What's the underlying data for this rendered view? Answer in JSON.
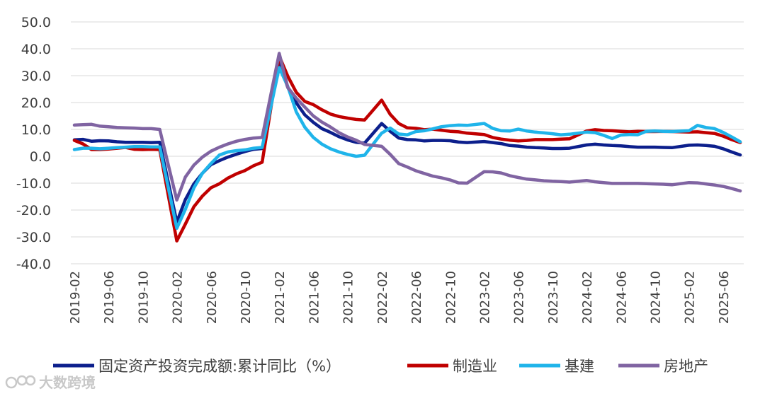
{
  "chart_data": {
    "type": "line",
    "title": "",
    "xlabel": "",
    "ylabel": "",
    "ylim": [
      -40,
      50
    ],
    "yticks": [
      50,
      40,
      30,
      20,
      10,
      0,
      -10,
      -20,
      -30,
      -40
    ],
    "ytick_labels": [
      "50.0",
      "40.0",
      "30.0",
      "20.0",
      "10.0",
      "0.0",
      "-10.0",
      "-20.0",
      "-30.0",
      "-40.0"
    ],
    "grid": true,
    "legend_position": "bottom",
    "xtick_labels": [
      "2019-02",
      "2019-06",
      "2019-10",
      "2020-02",
      "2020-06",
      "2020-10",
      "2021-02",
      "2021-06",
      "2021-10",
      "2022-02",
      "2022-06",
      "2022-10",
      "2023-02",
      "2023-06",
      "2023-10",
      "2024-02",
      "2024-06",
      "2024-10",
      "2025-02",
      "2025-06"
    ],
    "series": [
      {
        "name": "固定资产投资完成额:累计同比（%）",
        "color": "#0c1f8c",
        "values": [
          [
            0,
            6.1
          ],
          [
            1,
            6.3
          ],
          [
            2,
            5.6
          ],
          [
            3,
            5.8
          ],
          [
            4,
            5.7
          ],
          [
            5,
            5.4
          ],
          [
            6,
            5.2
          ],
          [
            7,
            5.2
          ],
          [
            8,
            5.2
          ],
          [
            9,
            5.1
          ],
          [
            10,
            5.2
          ],
          [
            12,
            -24.5
          ],
          [
            13,
            -16.1
          ],
          [
            14,
            -10.3
          ],
          [
            15,
            -6.3
          ],
          [
            16,
            -3.1
          ],
          [
            17,
            -1.6
          ],
          [
            18,
            -0.3
          ],
          [
            19,
            0.8
          ],
          [
            20,
            1.8
          ],
          [
            21,
            2.6
          ],
          [
            22,
            2.9
          ],
          [
            24,
            35.0
          ],
          [
            25,
            25.6
          ],
          [
            26,
            19.9
          ],
          [
            27,
            15.4
          ],
          [
            28,
            12.6
          ],
          [
            29,
            10.3
          ],
          [
            30,
            8.9
          ],
          [
            31,
            7.3
          ],
          [
            32,
            6.1
          ],
          [
            33,
            5.2
          ],
          [
            34,
            4.9
          ],
          [
            36,
            12.2
          ],
          [
            37,
            9.3
          ],
          [
            38,
            6.8
          ],
          [
            39,
            6.2
          ],
          [
            40,
            6.1
          ],
          [
            41,
            5.7
          ],
          [
            42,
            5.9
          ],
          [
            43,
            5.9
          ],
          [
            44,
            5.8
          ],
          [
            45,
            5.3
          ],
          [
            46,
            5.1
          ],
          [
            48,
            5.5
          ],
          [
            49,
            5.1
          ],
          [
            50,
            4.7
          ],
          [
            51,
            4.0
          ],
          [
            52,
            3.8
          ],
          [
            53,
            3.4
          ],
          [
            54,
            3.2
          ],
          [
            55,
            3.1
          ],
          [
            56,
            2.9
          ],
          [
            57,
            2.9
          ],
          [
            58,
            3.0
          ],
          [
            60,
            4.2
          ],
          [
            61,
            4.5
          ],
          [
            62,
            4.2
          ],
          [
            63,
            4.0
          ],
          [
            64,
            3.9
          ],
          [
            65,
            3.6
          ],
          [
            66,
            3.4
          ],
          [
            67,
            3.4
          ],
          [
            68,
            3.4
          ],
          [
            69,
            3.3
          ],
          [
            70,
            3.2
          ],
          [
            72,
            4.1
          ],
          [
            73,
            4.2
          ],
          [
            74,
            4.0
          ],
          [
            75,
            3.7
          ],
          [
            76,
            2.8
          ],
          [
            77,
            1.6
          ],
          [
            78,
            0.5
          ]
        ]
      },
      {
        "name": "制造业",
        "color": "#c00000",
        "values": [
          [
            0,
            5.9
          ],
          [
            1,
            4.6
          ],
          [
            2,
            2.5
          ],
          [
            3,
            2.5
          ],
          [
            4,
            2.7
          ],
          [
            5,
            3.0
          ],
          [
            6,
            3.3
          ],
          [
            7,
            2.6
          ],
          [
            8,
            2.5
          ],
          [
            9,
            2.6
          ],
          [
            10,
            2.5
          ],
          [
            12,
            -31.5
          ],
          [
            13,
            -25.2
          ],
          [
            14,
            -18.8
          ],
          [
            15,
            -14.8
          ],
          [
            16,
            -11.7
          ],
          [
            17,
            -10.2
          ],
          [
            18,
            -8.1
          ],
          [
            19,
            -6.5
          ],
          [
            20,
            -5.3
          ],
          [
            21,
            -3.5
          ],
          [
            22,
            -2.2
          ],
          [
            24,
            37.3
          ],
          [
            25,
            29.8
          ],
          [
            26,
            23.8
          ],
          [
            27,
            20.4
          ],
          [
            28,
            19.2
          ],
          [
            29,
            17.3
          ],
          [
            30,
            15.7
          ],
          [
            31,
            14.8
          ],
          [
            32,
            14.2
          ],
          [
            33,
            13.7
          ],
          [
            34,
            13.5
          ],
          [
            36,
            20.9
          ],
          [
            37,
            15.6
          ],
          [
            38,
            12.2
          ],
          [
            39,
            10.6
          ],
          [
            40,
            10.4
          ],
          [
            41,
            9.9
          ],
          [
            42,
            10.1
          ],
          [
            43,
            9.7
          ],
          [
            44,
            9.3
          ],
          [
            45,
            9.1
          ],
          [
            46,
            8.6
          ],
          [
            48,
            8.1
          ],
          [
            49,
            7.0
          ],
          [
            50,
            6.4
          ],
          [
            51,
            6.0
          ],
          [
            52,
            5.7
          ],
          [
            53,
            5.9
          ],
          [
            54,
            6.2
          ],
          [
            55,
            6.2
          ],
          [
            56,
            6.2
          ],
          [
            57,
            6.4
          ],
          [
            58,
            6.5
          ],
          [
            60,
            9.4
          ],
          [
            61,
            9.9
          ],
          [
            62,
            9.6
          ],
          [
            63,
            9.5
          ],
          [
            64,
            9.3
          ],
          [
            65,
            9.1
          ],
          [
            66,
            9.3
          ],
          [
            67,
            9.2
          ],
          [
            68,
            9.2
          ],
          [
            69,
            9.3
          ],
          [
            70,
            9.2
          ],
          [
            72,
            9.0
          ],
          [
            73,
            9.1
          ],
          [
            74,
            8.8
          ],
          [
            75,
            8.5
          ],
          [
            76,
            7.5
          ],
          [
            77,
            6.2
          ],
          [
            78,
            5.1
          ]
        ]
      },
      {
        "name": "基建",
        "color": "#1fb4ea",
        "values": [
          [
            0,
            2.5
          ],
          [
            1,
            3.0
          ],
          [
            2,
            3.0
          ],
          [
            3,
            2.8
          ],
          [
            4,
            3.0
          ],
          [
            5,
            3.2
          ],
          [
            6,
            3.4
          ],
          [
            7,
            3.6
          ],
          [
            8,
            3.6
          ],
          [
            9,
            3.5
          ],
          [
            10,
            3.5
          ],
          [
            12,
            -26.8
          ],
          [
            13,
            -19.7
          ],
          [
            14,
            -11.8
          ],
          [
            15,
            -6.3
          ],
          [
            16,
            -2.7
          ],
          [
            17,
            0.5
          ],
          [
            18,
            1.6
          ],
          [
            19,
            2.1
          ],
          [
            20,
            2.4
          ],
          [
            21,
            3.0
          ],
          [
            22,
            3.3
          ],
          [
            24,
            33.0
          ],
          [
            25,
            26.0
          ],
          [
            26,
            16.5
          ],
          [
            27,
            10.8
          ],
          [
            28,
            7.0
          ],
          [
            29,
            4.5
          ],
          [
            30,
            2.8
          ],
          [
            31,
            1.6
          ],
          [
            32,
            0.7
          ],
          [
            33,
            0.0
          ],
          [
            34,
            0.4
          ],
          [
            36,
            8.6
          ],
          [
            37,
            10.5
          ],
          [
            38,
            8.3
          ],
          [
            39,
            8.0
          ],
          [
            40,
            9.2
          ],
          [
            41,
            9.5
          ],
          [
            42,
            10.2
          ],
          [
            43,
            11.0
          ],
          [
            44,
            11.4
          ],
          [
            45,
            11.6
          ],
          [
            46,
            11.5
          ],
          [
            48,
            12.2
          ],
          [
            49,
            10.4
          ],
          [
            50,
            9.5
          ],
          [
            51,
            9.4
          ],
          [
            52,
            10.1
          ],
          [
            53,
            9.4
          ],
          [
            54,
            9.0
          ],
          [
            55,
            8.7
          ],
          [
            56,
            8.4
          ],
          [
            57,
            8.0
          ],
          [
            58,
            8.2
          ],
          [
            60,
            9.0
          ],
          [
            61,
            8.8
          ],
          [
            62,
            7.8
          ],
          [
            63,
            6.6
          ],
          [
            64,
            7.9
          ],
          [
            65,
            8.1
          ],
          [
            66,
            8.0
          ],
          [
            67,
            9.3
          ],
          [
            68,
            9.4
          ],
          [
            69,
            9.3
          ],
          [
            70,
            9.2
          ],
          [
            72,
            9.5
          ],
          [
            73,
            11.5
          ],
          [
            74,
            10.7
          ],
          [
            75,
            10.3
          ],
          [
            76,
            8.9
          ],
          [
            77,
            7.2
          ],
          [
            78,
            5.4
          ]
        ]
      },
      {
        "name": "房地产",
        "color": "#8064a2",
        "values": [
          [
            0,
            11.6
          ],
          [
            1,
            11.8
          ],
          [
            2,
            11.9
          ],
          [
            3,
            11.2
          ],
          [
            4,
            11.0
          ],
          [
            5,
            10.7
          ],
          [
            6,
            10.6
          ],
          [
            7,
            10.5
          ],
          [
            8,
            10.3
          ],
          [
            9,
            10.3
          ],
          [
            10,
            10.0
          ],
          [
            12,
            -16.3
          ],
          [
            13,
            -7.7
          ],
          [
            14,
            -3.3
          ],
          [
            15,
            -0.3
          ],
          [
            16,
            1.9
          ],
          [
            17,
            3.4
          ],
          [
            18,
            4.6
          ],
          [
            19,
            5.6
          ],
          [
            20,
            6.3
          ],
          [
            21,
            6.8
          ],
          [
            22,
            7.0
          ],
          [
            24,
            38.3
          ],
          [
            25,
            25.6
          ],
          [
            26,
            21.6
          ],
          [
            27,
            18.3
          ],
          [
            28,
            15.0
          ],
          [
            29,
            12.7
          ],
          [
            30,
            10.9
          ],
          [
            31,
            8.8
          ],
          [
            32,
            7.2
          ],
          [
            33,
            6.0
          ],
          [
            34,
            4.4
          ],
          [
            36,
            3.7
          ],
          [
            37,
            0.7
          ],
          [
            38,
            -2.7
          ],
          [
            39,
            -4.0
          ],
          [
            40,
            -5.4
          ],
          [
            41,
            -6.4
          ],
          [
            42,
            -7.4
          ],
          [
            43,
            -8.0
          ],
          [
            44,
            -8.8
          ],
          [
            45,
            -9.9
          ],
          [
            46,
            -10.0
          ],
          [
            48,
            -5.7
          ],
          [
            49,
            -5.8
          ],
          [
            50,
            -6.2
          ],
          [
            51,
            -7.2
          ],
          [
            52,
            -7.9
          ],
          [
            53,
            -8.5
          ],
          [
            54,
            -8.8
          ],
          [
            55,
            -9.1
          ],
          [
            56,
            -9.3
          ],
          [
            57,
            -9.4
          ],
          [
            58,
            -9.6
          ],
          [
            60,
            -9.0
          ],
          [
            61,
            -9.5
          ],
          [
            62,
            -9.8
          ],
          [
            63,
            -10.1
          ],
          [
            64,
            -10.1
          ],
          [
            65,
            -10.1
          ],
          [
            66,
            -10.1
          ],
          [
            67,
            -10.2
          ],
          [
            68,
            -10.3
          ],
          [
            69,
            -10.4
          ],
          [
            70,
            -10.6
          ],
          [
            72,
            -9.8
          ],
          [
            73,
            -9.9
          ],
          [
            74,
            -10.3
          ],
          [
            75,
            -10.7
          ],
          [
            76,
            -11.2
          ],
          [
            77,
            -12.0
          ],
          [
            78,
            -12.9
          ]
        ]
      }
    ]
  },
  "watermark": {
    "text": "大数跨境"
  }
}
